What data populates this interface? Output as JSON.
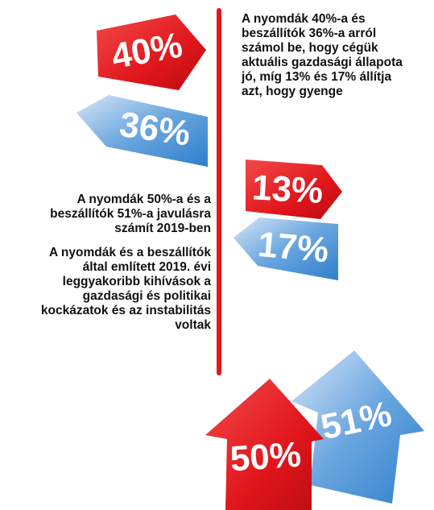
{
  "signs": [
    {
      "label": "40%"
    },
    {
      "label": "36%"
    },
    {
      "label": "13%"
    },
    {
      "label": "17%"
    },
    {
      "label": "51%"
    },
    {
      "label": "50%"
    }
  ],
  "top_text": {
    "lines": [
      "A nyomdák 40%-a és",
      "beszállítók 36%-a arról",
      "számol be, hogy cégük",
      "aktuális gazdasági állapota",
      "jó, míg 13% és 17% állítja",
      "azt, hogy gyenge"
    ]
  },
  "middle_text": {
    "lines": [
      "A nyomdák 50%-a és a",
      "beszállítók 51%-a javulásra",
      "számít 2019-ben"
    ]
  },
  "bottom_text": {
    "lines": [
      "A nyomdák és a beszállítók",
      "által említett 2019. évi",
      "leggyakoribb kihívások a",
      "gazdasági és politikai",
      "kockázatok és az instabilitás",
      "voltak"
    ]
  }
}
